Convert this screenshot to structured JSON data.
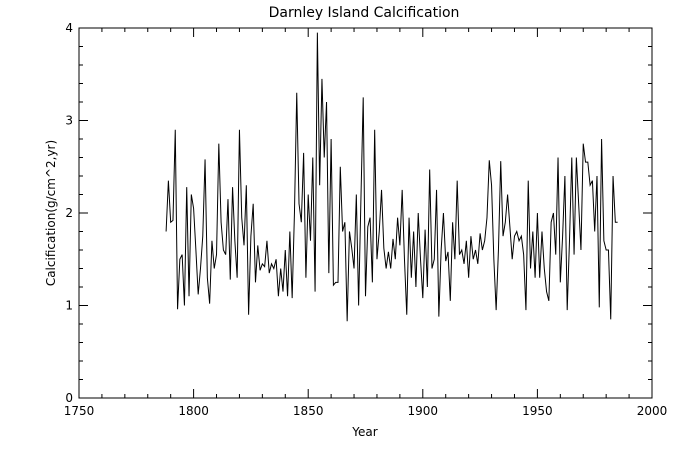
{
  "chart_data": {
    "type": "line",
    "title": "Darnley Island Calcification",
    "xlabel": "Year",
    "ylabel": "Calcification(g/cm^2,yr)",
    "xlim": [
      1750,
      2000
    ],
    "ylim": [
      0,
      4
    ],
    "xticks": [
      1750,
      1800,
      1850,
      1900,
      1950,
      2000
    ],
    "yticks": [
      0,
      1,
      2,
      3,
      4
    ],
    "xtick_labels": [
      "1750",
      "1800",
      "1850",
      "1900",
      "1950",
      "2000"
    ],
    "ytick_labels": [
      "0",
      "1",
      "2",
      "3",
      "4"
    ],
    "grid": false,
    "line_color": "#000000",
    "series": [
      {
        "x_start": 1788,
        "x_step": 1,
        "values": [
          1.8,
          2.35,
          1.9,
          1.92,
          2.9,
          0.96,
          1.5,
          1.55,
          1.0,
          2.28,
          1.1,
          2.2,
          2.05,
          1.6,
          1.12,
          1.4,
          1.75,
          2.58,
          1.3,
          1.02,
          1.7,
          1.4,
          1.55,
          2.75,
          1.9,
          1.6,
          1.55,
          2.15,
          1.28,
          2.28,
          1.7,
          1.3,
          2.9,
          1.95,
          1.65,
          2.3,
          0.9,
          1.75,
          2.1,
          1.25,
          1.65,
          1.38,
          1.45,
          1.42,
          1.7,
          1.35,
          1.45,
          1.4,
          1.5,
          1.1,
          1.4,
          1.15,
          1.6,
          1.1,
          1.8,
          1.08,
          2.0,
          3.3,
          2.1,
          1.9,
          2.65,
          1.3,
          2.2,
          1.7,
          2.6,
          1.15,
          3.95,
          2.3,
          3.45,
          2.6,
          3.2,
          1.35,
          2.8,
          1.22,
          1.25,
          1.25,
          2.5,
          1.8,
          1.9,
          0.83,
          1.8,
          1.62,
          1.4,
          2.2,
          1.0,
          2.15,
          3.25,
          1.1,
          1.85,
          1.95,
          1.25,
          2.9,
          1.5,
          1.8,
          2.25,
          1.62,
          1.4,
          1.58,
          1.4,
          1.72,
          1.5,
          1.95,
          1.65,
          2.25,
          1.5,
          0.9,
          1.95,
          1.3,
          1.8,
          1.2,
          2.0,
          1.5,
          1.08,
          1.82,
          1.2,
          2.47,
          1.4,
          1.5,
          2.25,
          0.88,
          1.6,
          2.0,
          1.48,
          1.58,
          1.05,
          1.9,
          1.5,
          2.35,
          1.55,
          1.6,
          1.45,
          1.7,
          1.3,
          1.75,
          1.5,
          1.6,
          1.45,
          1.78,
          1.6,
          1.7,
          1.95,
          2.57,
          2.3,
          1.5,
          0.95,
          1.6,
          2.56,
          1.75,
          1.9,
          2.2,
          1.85,
          1.5,
          1.75,
          1.8,
          1.7,
          1.75,
          1.55,
          0.95,
          2.35,
          1.4,
          1.8,
          1.3,
          2.0,
          1.3,
          1.8,
          1.4,
          1.15,
          1.05,
          1.9,
          2.0,
          1.55,
          2.6,
          1.25,
          1.75,
          2.4,
          0.95,
          1.7,
          2.6,
          1.55,
          2.6,
          2.1,
          1.6,
          2.75,
          2.55,
          2.55,
          2.3,
          2.35,
          1.8,
          2.4,
          0.98,
          2.8,
          1.7,
          1.6,
          1.6,
          0.85,
          2.4,
          1.9,
          1.9
        ]
      }
    ]
  }
}
